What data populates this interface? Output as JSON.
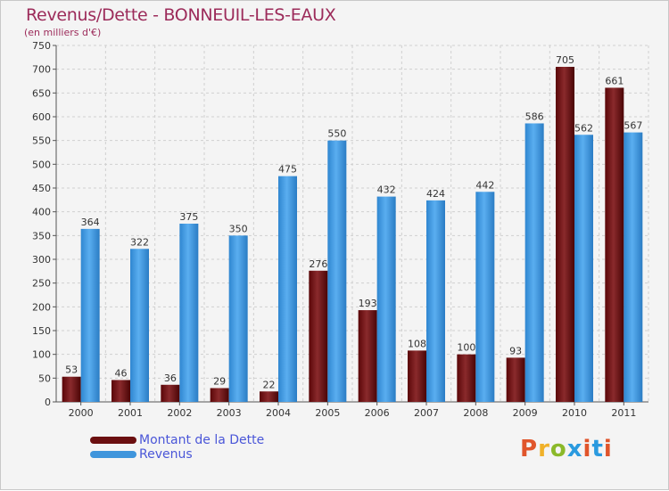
{
  "header": {
    "title": "Revenus/Dette - BONNEUIL-LES-EAUX",
    "subtitle": "(en milliers d'€)"
  },
  "legend": {
    "items": [
      {
        "label": "Montant de la Dette",
        "color": "#6b0f10"
      },
      {
        "label": "Revenus",
        "color": "#3f95dc"
      }
    ]
  },
  "brand": {
    "text": "Proxiti",
    "colors": [
      "#e0552b",
      "#f0b12a",
      "#8bb92a",
      "#2a9adf",
      "#e0552b",
      "#2a9adf",
      "#e0552b"
    ]
  },
  "chart_data": {
    "type": "bar",
    "title": "Revenus/Dette - BONNEUIL-LES-EAUX",
    "ylabel": "(en milliers d'€)",
    "xlabel": "",
    "ylim": [
      0,
      750
    ],
    "ytick_step": 50,
    "grid": true,
    "categories": [
      "2000",
      "2001",
      "2002",
      "2003",
      "2004",
      "2005",
      "2006",
      "2007",
      "2008",
      "2009",
      "2010",
      "2011"
    ],
    "series": [
      {
        "name": "Montant de la Dette",
        "color": "#6b0f10",
        "values": [
          53,
          46,
          36,
          29,
          22,
          276,
          193,
          108,
          100,
          93,
          705,
          661
        ]
      },
      {
        "name": "Revenus",
        "color": "#3f95dc",
        "values": [
          364,
          322,
          375,
          350,
          475,
          550,
          432,
          424,
          442,
          586,
          562,
          567
        ]
      }
    ]
  }
}
